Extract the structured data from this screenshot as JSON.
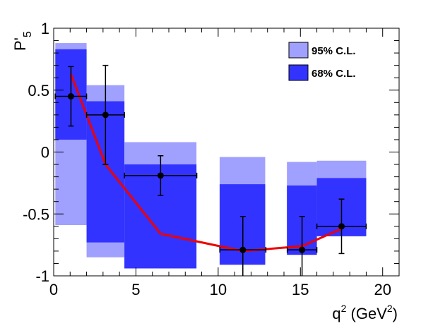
{
  "chart_data": {
    "type": "line",
    "xlabel": "q",
    "xlabel_sup": "2",
    "xlabel_unit": " (GeV",
    "xlabel_unit_sup": "2",
    "xlabel_close": ")",
    "ylabel": "P'",
    "ylabel_sub": "5",
    "xlim": [
      0,
      21
    ],
    "ylim": [
      -1,
      1
    ],
    "x_ticks": [
      0,
      5,
      10,
      15,
      20
    ],
    "x_tick_labels": [
      "0",
      "5",
      "10",
      "15",
      "20"
    ],
    "y_ticks": [
      -1,
      -0.5,
      0,
      0.5,
      1
    ],
    "y_tick_labels": [
      "-1",
      "-0.5",
      "0",
      "0.5",
      "1"
    ],
    "legend": {
      "position": "top-right",
      "entries": [
        {
          "label": "95% C.L.",
          "color": "#a0a0ff"
        },
        {
          "label": "68% C.L.",
          "color": "#3333ff"
        }
      ]
    },
    "bands": [
      {
        "x0": 0.1,
        "x1": 2.0,
        "cl95": [
          -0.59,
          0.88
        ],
        "cl68": [
          0.1,
          0.83
        ]
      },
      {
        "x0": 2.0,
        "x1": 4.3,
        "cl95": [
          -0.85,
          0.54
        ],
        "cl68": [
          -0.73,
          0.41
        ]
      },
      {
        "x0": 4.3,
        "x1": 8.68,
        "cl95": [
          -0.94,
          0.08
        ],
        "cl68": [
          -0.94,
          -0.1
        ]
      },
      {
        "x0": 10.09,
        "x1": 12.86,
        "cl95": [
          -0.91,
          -0.04
        ],
        "cl68": [
          -0.91,
          -0.26
        ]
      },
      {
        "x0": 14.18,
        "x1": 16.0,
        "cl95": [
          -0.83,
          -0.08
        ],
        "cl68": [
          -0.83,
          -0.27
        ]
      },
      {
        "x0": 16.0,
        "x1": 19.0,
        "cl95": [
          -0.68,
          -0.07
        ],
        "cl68": [
          -0.68,
          -0.21
        ]
      }
    ],
    "series": [
      {
        "type": "errorbar",
        "color": "#000000",
        "points": [
          {
            "x": 1.05,
            "y": 0.45,
            "xerr": [
              0.95,
              0.95
            ],
            "yerr": [
              0.24,
              0.24
            ]
          },
          {
            "x": 3.15,
            "y": 0.3,
            "xerr": [
              1.15,
              1.15
            ],
            "yerr": [
              0.4,
              0.4
            ]
          },
          {
            "x": 6.5,
            "y": -0.19,
            "xerr": [
              2.2,
              2.2
            ],
            "yerr": [
              0.16,
              0.16
            ]
          },
          {
            "x": 11.5,
            "y": -0.79,
            "xerr": [
              1.4,
              1.4
            ],
            "yerr": [
              0.27,
              0.27
            ]
          },
          {
            "x": 15.1,
            "y": -0.79,
            "xerr": [
              0.9,
              0.9
            ],
            "yerr": [
              0.27,
              0.27
            ]
          },
          {
            "x": 17.5,
            "y": -0.6,
            "xerr": [
              1.5,
              1.5
            ],
            "yerr": [
              0.22,
              0.22
            ]
          }
        ]
      },
      {
        "type": "line",
        "color": "#ee0000",
        "x": [
          1.05,
          3.15,
          6.5,
          11.5,
          15.1,
          17.5
        ],
        "y": [
          0.63,
          -0.1,
          -0.66,
          -0.8,
          -0.76,
          -0.62
        ]
      }
    ]
  }
}
